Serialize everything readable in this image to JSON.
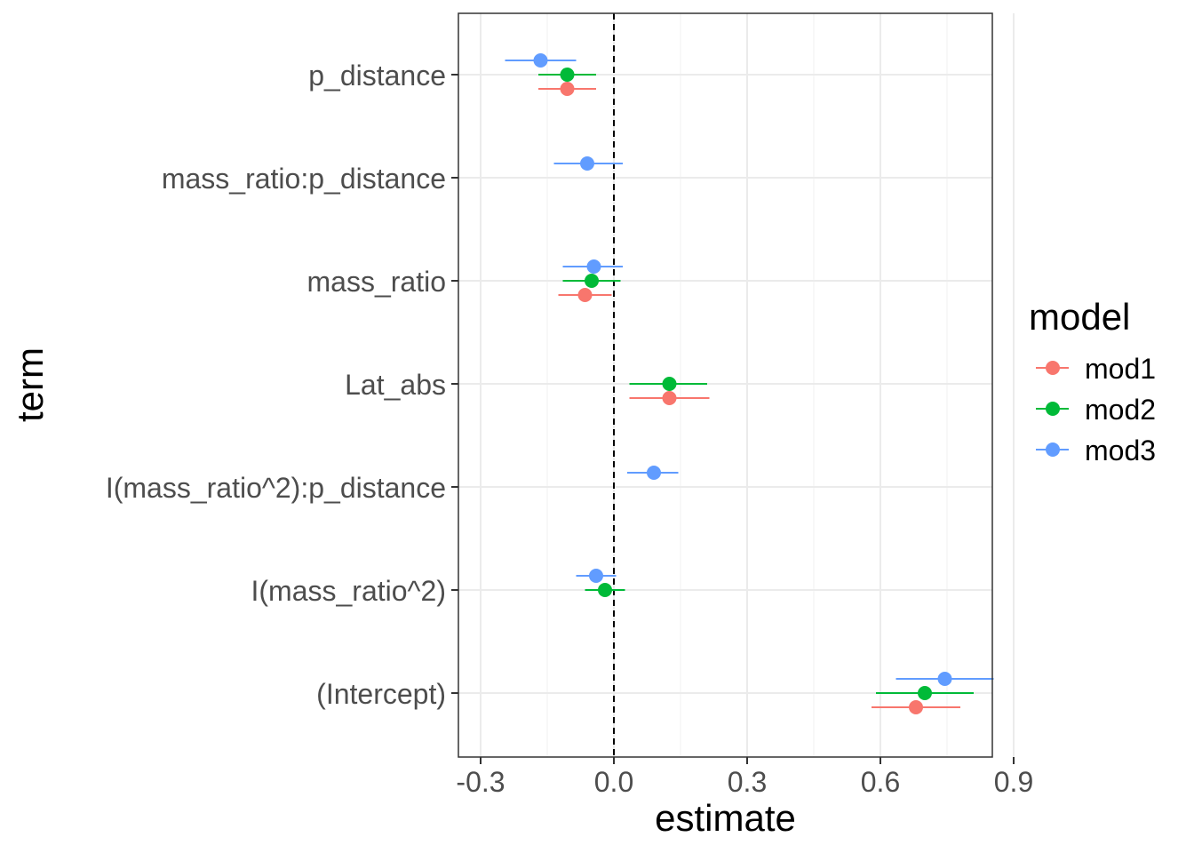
{
  "chart_data": {
    "type": "scatter",
    "subtype": "coefficient-plot",
    "xlabel": "estimate",
    "ylabel": "term",
    "xlim": [
      -0.3,
      0.9
    ],
    "x_ticks": [
      "-0.3",
      "0.0",
      "0.3",
      "0.6",
      "0.9"
    ],
    "reference_line": 0,
    "grid": true,
    "legend_position": "right",
    "legend_title": "model",
    "categories": [
      "p_distance",
      "mass_ratio:p_distance",
      "mass_ratio",
      "Lat_abs",
      "I(mass_ratio^2):p_distance",
      "I(mass_ratio^2)",
      "(Intercept)"
    ],
    "series": [
      {
        "name": "mod1",
        "color": "#F8766D",
        "points": [
          {
            "term": "p_distance",
            "estimate": -0.105,
            "low": -0.17,
            "high": -0.04
          },
          {
            "term": "mass_ratio",
            "estimate": -0.065,
            "low": -0.125,
            "high": -0.005
          },
          {
            "term": "Lat_abs",
            "estimate": 0.125,
            "low": 0.035,
            "high": 0.215
          },
          {
            "term": "(Intercept)",
            "estimate": 0.68,
            "low": 0.58,
            "high": 0.78
          }
        ]
      },
      {
        "name": "mod2",
        "color": "#00BA38",
        "points": [
          {
            "term": "p_distance",
            "estimate": -0.105,
            "low": -0.17,
            "high": -0.04
          },
          {
            "term": "mass_ratio",
            "estimate": -0.05,
            "low": -0.115,
            "high": 0.015
          },
          {
            "term": "Lat_abs",
            "estimate": 0.125,
            "low": 0.035,
            "high": 0.21
          },
          {
            "term": "I(mass_ratio^2)",
            "estimate": -0.02,
            "low": -0.065,
            "high": 0.025
          },
          {
            "term": "(Intercept)",
            "estimate": 0.7,
            "low": 0.59,
            "high": 0.81
          }
        ]
      },
      {
        "name": "mod3",
        "color": "#619CFF",
        "points": [
          {
            "term": "p_distance",
            "estimate": -0.165,
            "low": -0.245,
            "high": -0.085
          },
          {
            "term": "mass_ratio:p_distance",
            "estimate": -0.06,
            "low": -0.135,
            "high": 0.02
          },
          {
            "term": "mass_ratio",
            "estimate": -0.045,
            "low": -0.115,
            "high": 0.02
          },
          {
            "term": "I(mass_ratio^2):p_distance",
            "estimate": 0.09,
            "low": 0.03,
            "high": 0.145
          },
          {
            "term": "I(mass_ratio^2)",
            "estimate": -0.04,
            "low": -0.085,
            "high": 0.005
          },
          {
            "term": "(Intercept)",
            "estimate": 0.745,
            "low": 0.635,
            "high": 0.855
          }
        ]
      }
    ]
  }
}
